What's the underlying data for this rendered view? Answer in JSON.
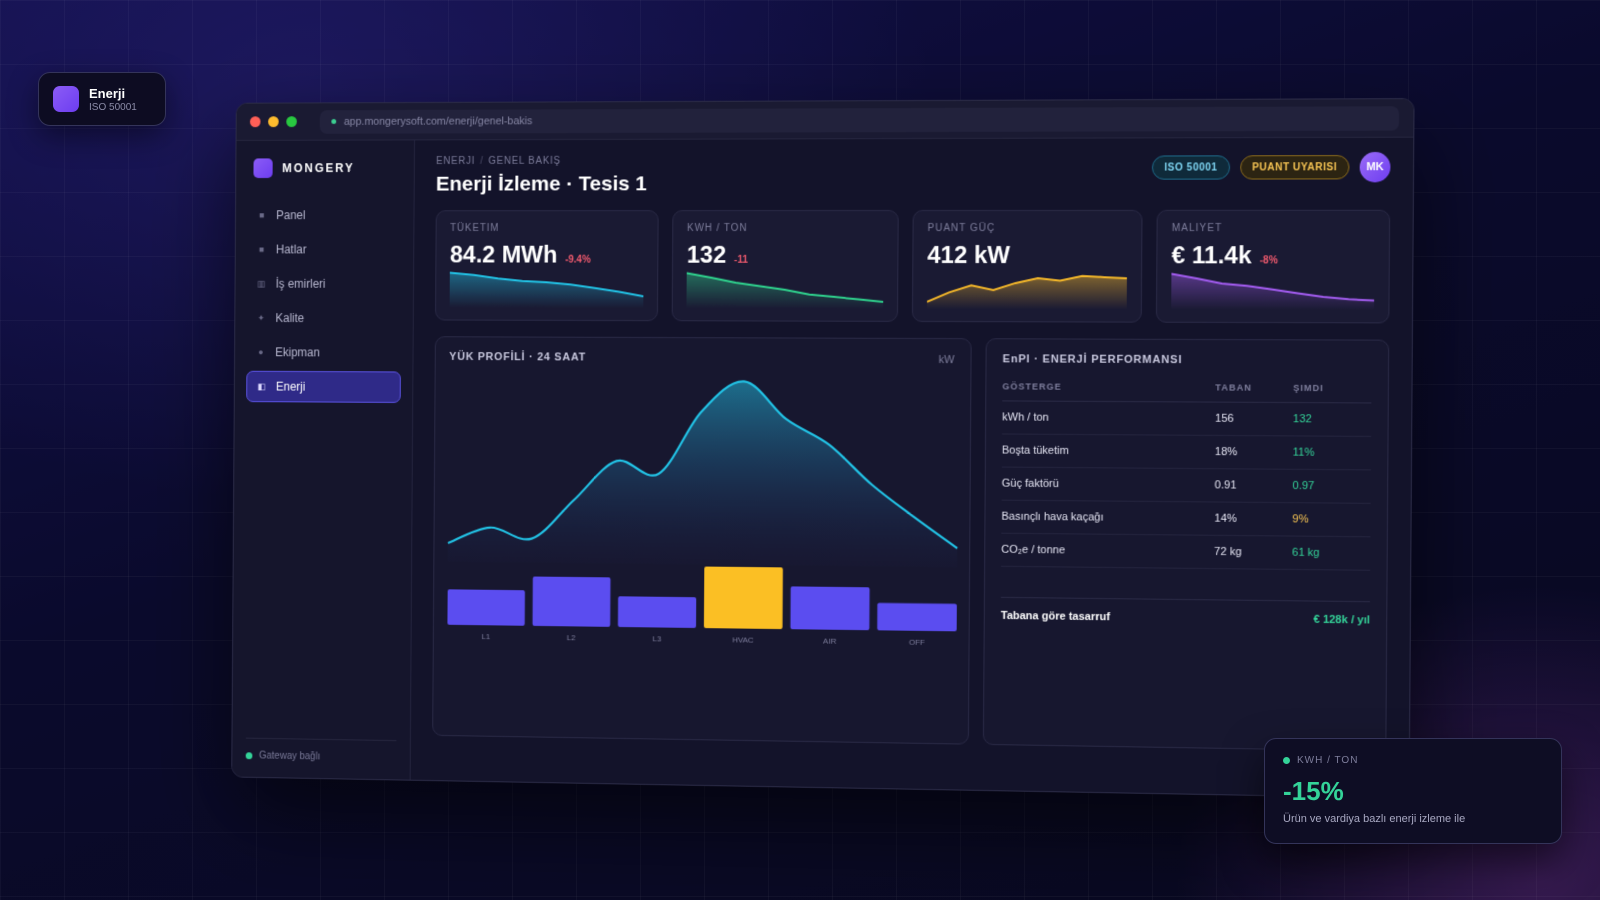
{
  "badge": {
    "title": "Enerji",
    "subtitle": "ISO 50001"
  },
  "browser": {
    "url": "app.mongerysoft.com/enerji/genel-bakis"
  },
  "sidebar": {
    "brand": "MONGERY",
    "items": [
      {
        "label": "Panel",
        "icon": "square-icon",
        "glyph": "■"
      },
      {
        "label": "Hatlar",
        "icon": "square-icon",
        "glyph": "■"
      },
      {
        "label": "İş emirleri",
        "icon": "list-icon",
        "glyph": "▥"
      },
      {
        "label": "Kalite",
        "icon": "diamond-icon",
        "glyph": "✦"
      },
      {
        "label": "Ekipman",
        "icon": "circle-icon",
        "glyph": "●"
      },
      {
        "label": "Enerji",
        "icon": "energy-icon",
        "glyph": "◧"
      }
    ],
    "active_index": 5,
    "status": "Gateway bağlı"
  },
  "header": {
    "crumb_root": "ENERJI",
    "crumb_sep": "/",
    "crumb_page": "GENEL BAKIŞ",
    "title": "Enerji İzleme · Tesis 1",
    "iso_label": "ISO 50001",
    "warn_label": "PUANT UYARISI",
    "avatar": "MK"
  },
  "kpis": [
    {
      "label": "TÜKETIM",
      "value": "84.2 MWh",
      "delta": "-9.4%",
      "color": "#22c3e6",
      "trend": [
        30,
        28,
        25,
        23,
        22,
        20,
        17,
        14,
        10
      ]
    },
    {
      "label": "KWH / TON",
      "value": "132",
      "delta": "-11",
      "color": "#2fd18d",
      "trend": [
        30,
        26,
        22,
        19,
        16,
        12,
        10,
        8,
        6
      ]
    },
    {
      "label": "PUANT GÜÇ",
      "value": "412 kW",
      "delta": "",
      "color": "#f5b82a",
      "trend": [
        6,
        14,
        20,
        16,
        22,
        26,
        24,
        28,
        27,
        26
      ]
    },
    {
      "label": "MALIYET",
      "value": "€ 11.4k",
      "delta": "-8%",
      "color": "#a35cf0",
      "trend": [
        30,
        26,
        22,
        20,
        17,
        14,
        11,
        9,
        8
      ]
    }
  ],
  "load_profile": {
    "title": "YÜK PROFİLİ · 24 SAAT",
    "unit": "kW",
    "bars": [
      {
        "label": "L1",
        "value": 0.42
      },
      {
        "label": "L2",
        "value": 0.58
      },
      {
        "label": "L3",
        "value": 0.36
      },
      {
        "label": "HVAC",
        "value": 0.72,
        "highlight": true
      },
      {
        "label": "AIR",
        "value": 0.5
      },
      {
        "label": "OFF",
        "value": 0.32
      }
    ],
    "curve": [
      0.05,
      0.14,
      0.08,
      0.3,
      0.52,
      0.45,
      0.8,
      0.97,
      0.76,
      0.62,
      0.4,
      0.22,
      0.05
    ]
  },
  "enpi": {
    "title": "EnPI · ENERJİ PERFORMANSI",
    "columns": [
      "GÖSTERGE",
      "TABAN",
      "ŞIMDI"
    ],
    "rows": [
      {
        "name": "kWh / ton",
        "base": "156",
        "now": "132",
        "status": "good"
      },
      {
        "name": "Boşta tüketim",
        "base": "18%",
        "now": "11%",
        "status": "good"
      },
      {
        "name": "Güç faktörü",
        "base": "0.91",
        "now": "0.97",
        "status": "good"
      },
      {
        "name": "Basınçlı hava kaçağı",
        "base": "14%",
        "now": "9%",
        "status": "warn"
      },
      {
        "name": "CO₂e / tonne",
        "base": "72 kg",
        "now": "61 kg",
        "status": "good"
      }
    ],
    "savings_label": "Tabana göre tasarruf",
    "savings_value": "€ 128k / yıl"
  },
  "float_card": {
    "label": "KWH / TON",
    "value": "-15%",
    "subtitle": "Ürün ve vardiya bazlı enerji izleme ile"
  },
  "colors": {
    "accent": "#5b4df0",
    "hvac": "#fbbf24",
    "good": "#34d399",
    "warn": "#f6c453",
    "curve": "#22c3e6"
  }
}
